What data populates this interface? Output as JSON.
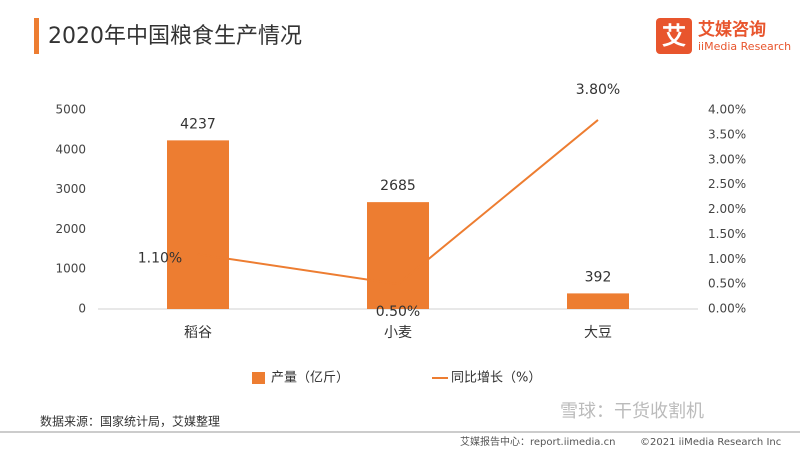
{
  "header": {
    "title": "2020年中国粮食生产情况",
    "logo_mark": "艾",
    "logo_name": "艾媒咨询",
    "logo_sub": "iiMedia Research"
  },
  "chart_data": {
    "type": "bar",
    "categories": [
      "稻谷",
      "小麦",
      "大豆"
    ],
    "series": [
      {
        "name": "产量（亿斤）",
        "type": "bar",
        "color": "#ed7d31",
        "values": [
          4237,
          2685,
          392
        ]
      },
      {
        "name": "同比增长（%）",
        "type": "line",
        "axis": "y2",
        "color": "#ed7d31",
        "values": [
          1.1,
          0.5,
          3.8
        ],
        "value_labels": [
          "1.10%",
          "0.50%",
          "3.80%"
        ]
      }
    ],
    "ylim": [
      0,
      5000
    ],
    "yticks": [
      0,
      1000,
      2000,
      3000,
      4000,
      5000
    ],
    "y2lim": [
      0,
      4
    ],
    "y2ticks": [
      {
        "value": 0,
        "label": "0.00%"
      },
      {
        "value": 0.5,
        "label": "0.50%"
      },
      {
        "value": 1,
        "label": "1.00%"
      },
      {
        "value": 1.5,
        "label": "1.50%"
      },
      {
        "value": 2,
        "label": "2.00%"
      },
      {
        "value": 2.5,
        "label": "2.50%"
      },
      {
        "value": 3,
        "label": "3.00%"
      },
      {
        "value": 3.5,
        "label": "3.50%"
      },
      {
        "value": 4,
        "label": "4.00%"
      }
    ],
    "legend": "bottom"
  },
  "footer": {
    "source": "数据来源：国家统计局，艾媒整理",
    "report": "艾媒报告中心：report.iimedia.cn",
    "copyright": "©2021  iiMedia Research  Inc",
    "watermark": "雪球：干货收割机"
  }
}
